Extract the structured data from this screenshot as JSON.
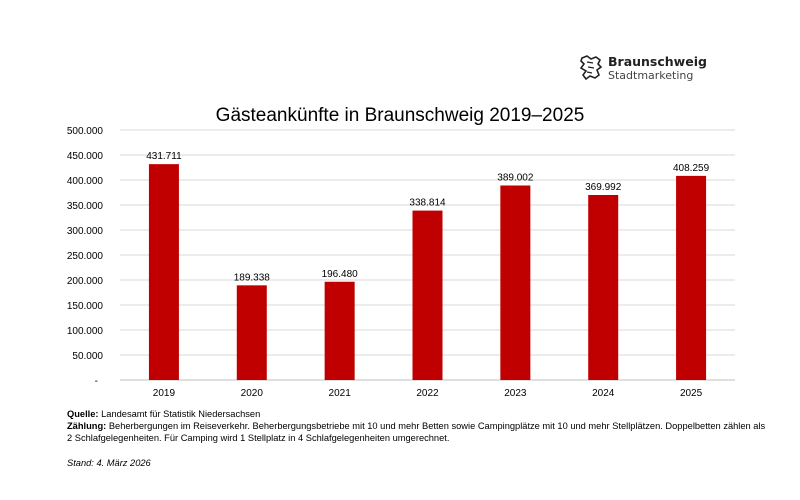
{
  "logo": {
    "name": "Braunschweig",
    "subtitle": "Stadtmarketing"
  },
  "chart_data": {
    "type": "bar",
    "title": "Gästeankünfte in Braunschweig 2019–2025",
    "xlabel": "",
    "ylabel": "",
    "categories": [
      "2019",
      "2020",
      "2021",
      "2022",
      "2023",
      "2024",
      "2025"
    ],
    "values": [
      431711,
      189338,
      196480,
      338814,
      389002,
      369992,
      408259
    ],
    "data_labels": [
      "431.711",
      "189.338",
      "196.480",
      "338.814",
      "389.002",
      "369.992",
      "408.259"
    ],
    "ylim": [
      0,
      500000
    ],
    "yticks": [
      0,
      50000,
      100000,
      150000,
      200000,
      250000,
      300000,
      350000,
      400000,
      450000,
      500000
    ],
    "ytick_labels": [
      "-",
      "50.000",
      "100.000",
      "150.000",
      "200.000",
      "250.000",
      "300.000",
      "350.000",
      "400.000",
      "450.000",
      "500.000"
    ],
    "grid": true,
    "bar_color": "#C00000",
    "grid_color": "#D9D9D9"
  },
  "notes": {
    "source_label": "Quelle:",
    "source_text": "Landesamt für Statistik Niedersachsen",
    "count_label": "Zählung:",
    "count_text": "Beherbergungen im Reiseverkehr. Beherbergungsbetriebe mit 10 und mehr Betten sowie Campingplätze mit 10 und mehr Stellplätzen. Doppelbetten zählen als 2 Schlafgelegenheiten. Für Camping wird 1 Stellplatz in 4 Schlafgelegenheiten umgerechnet.",
    "stand": "Stand: 4. März 2026"
  }
}
